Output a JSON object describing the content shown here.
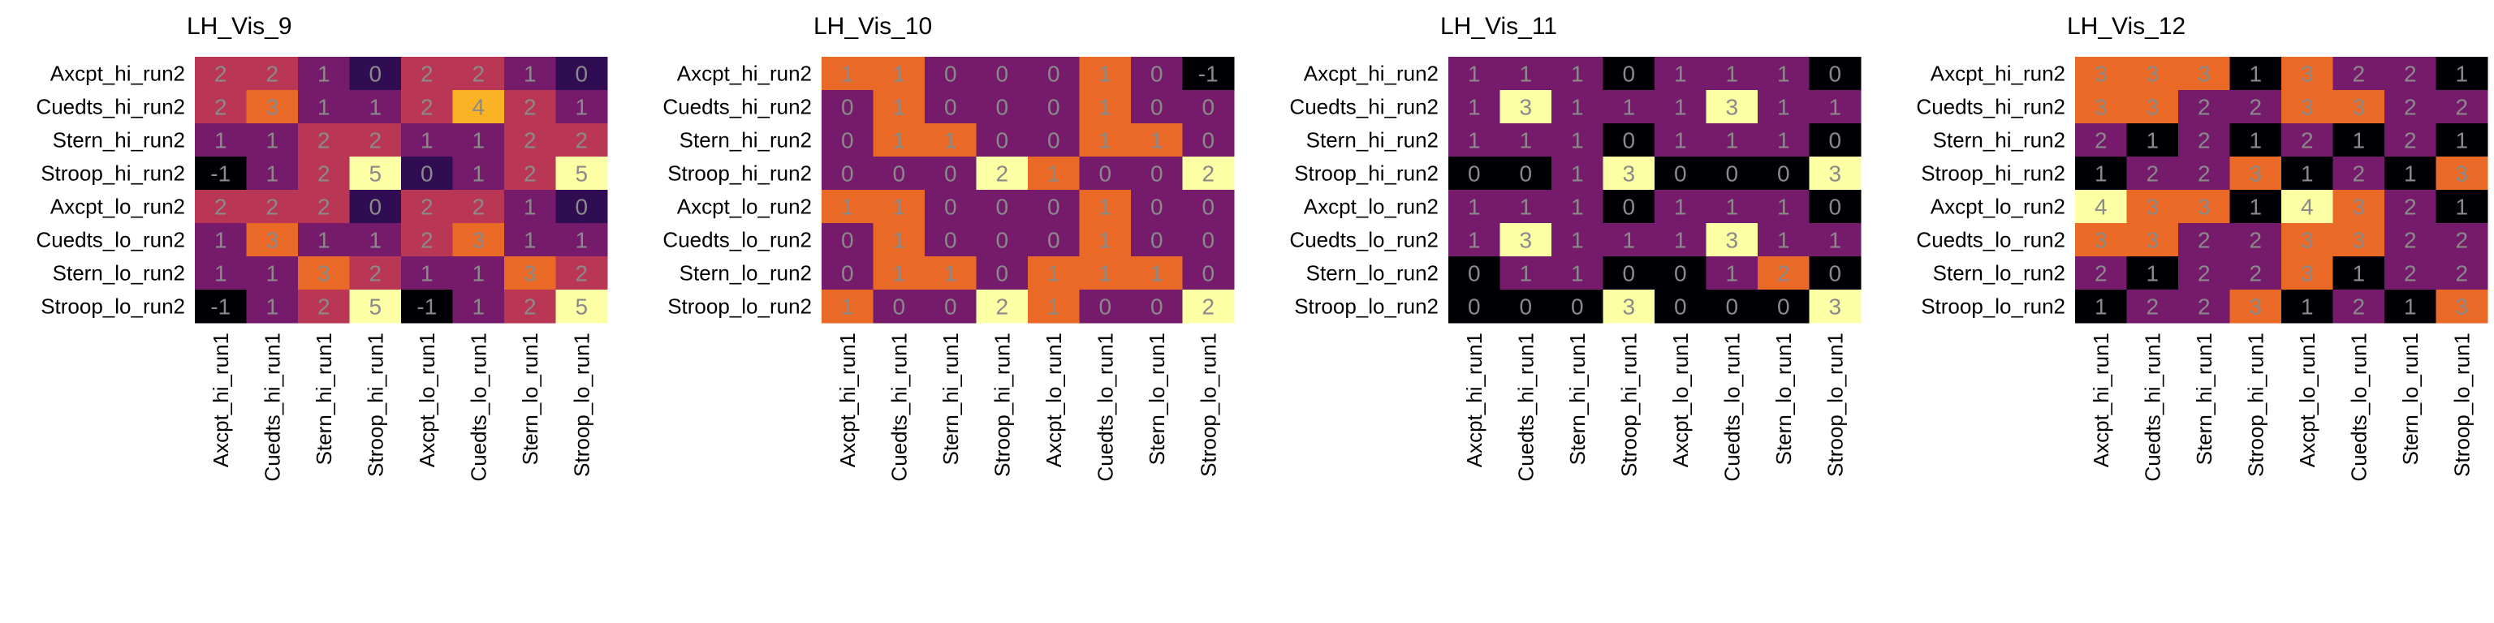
{
  "chart_data": [
    {
      "type": "heatmap",
      "title": "LH_Vis_9",
      "x_categories": [
        "Axcpt_hi_run1",
        "Cuedts_hi_run1",
        "Stern_hi_run1",
        "Stroop_hi_run1",
        "Axcpt_lo_run1",
        "Cuedts_lo_run1",
        "Stern_lo_run1",
        "Stroop_lo_run1"
      ],
      "y_categories": [
        "Axcpt_hi_run2",
        "Cuedts_hi_run2",
        "Stern_hi_run2",
        "Stroop_hi_run2",
        "Axcpt_lo_run2",
        "Cuedts_lo_run2",
        "Stern_lo_run2",
        "Stroop_lo_run2"
      ],
      "values": [
        [
          2,
          2,
          1,
          0,
          2,
          2,
          1,
          0
        ],
        [
          2,
          3,
          1,
          1,
          2,
          4,
          2,
          1
        ],
        [
          1,
          1,
          2,
          2,
          1,
          1,
          2,
          2
        ],
        [
          -1,
          1,
          2,
          5,
          0,
          1,
          2,
          5
        ],
        [
          2,
          2,
          2,
          0,
          2,
          2,
          1,
          0
        ],
        [
          1,
          3,
          1,
          1,
          2,
          3,
          1,
          1
        ],
        [
          1,
          1,
          3,
          2,
          1,
          1,
          3,
          2
        ],
        [
          -1,
          1,
          2,
          5,
          -1,
          1,
          2,
          5
        ]
      ],
      "colormap": "inferno"
    },
    {
      "type": "heatmap",
      "title": "LH_Vis_10",
      "x_categories": [
        "Axcpt_hi_run1",
        "Cuedts_hi_run1",
        "Stern_hi_run1",
        "Stroop_hi_run1",
        "Axcpt_lo_run1",
        "Cuedts_lo_run1",
        "Stern_lo_run1",
        "Stroop_lo_run1"
      ],
      "y_categories": [
        "Axcpt_hi_run2",
        "Cuedts_hi_run2",
        "Stern_hi_run2",
        "Stroop_hi_run2",
        "Axcpt_lo_run2",
        "Cuedts_lo_run2",
        "Stern_lo_run2",
        "Stroop_lo_run2"
      ],
      "values": [
        [
          1,
          1,
          0,
          0,
          0,
          1,
          0,
          -1
        ],
        [
          0,
          1,
          0,
          0,
          0,
          1,
          0,
          0
        ],
        [
          0,
          1,
          1,
          0,
          0,
          1,
          1,
          0
        ],
        [
          0,
          0,
          0,
          2,
          1,
          0,
          0,
          2
        ],
        [
          1,
          1,
          0,
          0,
          0,
          1,
          0,
          0
        ],
        [
          0,
          1,
          0,
          0,
          0,
          1,
          0,
          0
        ],
        [
          0,
          1,
          1,
          0,
          1,
          1,
          1,
          0
        ],
        [
          1,
          0,
          0,
          2,
          1,
          0,
          0,
          2
        ]
      ],
      "colormap": "inferno"
    },
    {
      "type": "heatmap",
      "title": "LH_Vis_11",
      "x_categories": [
        "Axcpt_hi_run1",
        "Cuedts_hi_run1",
        "Stern_hi_run1",
        "Stroop_hi_run1",
        "Axcpt_lo_run1",
        "Cuedts_lo_run1",
        "Stern_lo_run1",
        "Stroop_lo_run1"
      ],
      "y_categories": [
        "Axcpt_hi_run2",
        "Cuedts_hi_run2",
        "Stern_hi_run2",
        "Stroop_hi_run2",
        "Axcpt_lo_run2",
        "Cuedts_lo_run2",
        "Stern_lo_run2",
        "Stroop_lo_run2"
      ],
      "values": [
        [
          1,
          1,
          1,
          0,
          1,
          1,
          1,
          0
        ],
        [
          1,
          3,
          1,
          1,
          1,
          3,
          1,
          1
        ],
        [
          1,
          1,
          1,
          0,
          1,
          1,
          1,
          0
        ],
        [
          0,
          0,
          1,
          3,
          0,
          0,
          0,
          3
        ],
        [
          1,
          1,
          1,
          0,
          1,
          1,
          1,
          0
        ],
        [
          1,
          3,
          1,
          1,
          1,
          3,
          1,
          1
        ],
        [
          0,
          1,
          1,
          0,
          0,
          1,
          2,
          0
        ],
        [
          0,
          0,
          0,
          3,
          0,
          0,
          0,
          3
        ]
      ],
      "colormap": "inferno"
    },
    {
      "type": "heatmap",
      "title": "LH_Vis_12",
      "x_categories": [
        "Axcpt_hi_run1",
        "Cuedts_hi_run1",
        "Stern_hi_run1",
        "Stroop_hi_run1",
        "Axcpt_lo_run1",
        "Cuedts_lo_run1",
        "Stern_lo_run1",
        "Stroop_lo_run1"
      ],
      "y_categories": [
        "Axcpt_hi_run2",
        "Cuedts_hi_run2",
        "Stern_hi_run2",
        "Stroop_hi_run2",
        "Axcpt_lo_run2",
        "Cuedts_lo_run2",
        "Stern_lo_run2",
        "Stroop_lo_run2"
      ],
      "values": [
        [
          3,
          3,
          3,
          1,
          3,
          2,
          2,
          1
        ],
        [
          3,
          3,
          2,
          2,
          3,
          3,
          2,
          2
        ],
        [
          2,
          1,
          2,
          1,
          2,
          1,
          2,
          1
        ],
        [
          1,
          2,
          2,
          3,
          1,
          2,
          1,
          3
        ],
        [
          4,
          3,
          3,
          1,
          4,
          3,
          2,
          1
        ],
        [
          3,
          3,
          2,
          2,
          3,
          3,
          2,
          2
        ],
        [
          2,
          1,
          2,
          2,
          3,
          1,
          2,
          2
        ],
        [
          1,
          2,
          2,
          3,
          1,
          2,
          1,
          3
        ]
      ],
      "colormap": "inferno"
    }
  ]
}
